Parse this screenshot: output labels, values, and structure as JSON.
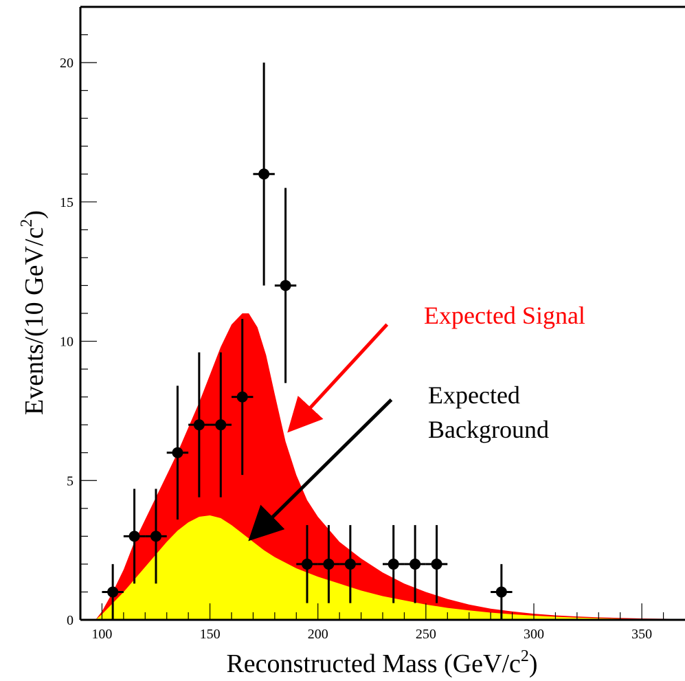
{
  "chart_data": {
    "type": "scatter",
    "title": "",
    "xlabel": {
      "main": "Reconstructed Mass (GeV/c",
      "sup": "2",
      "close": ")"
    },
    "ylabel": {
      "main": "Events/(10 GeV/c",
      "sup": "2",
      "close": ")"
    },
    "xlim": [
      90,
      370
    ],
    "ylim": [
      0,
      22
    ],
    "x_ticks": [
      100,
      150,
      200,
      250,
      300,
      350
    ],
    "y_ticks": [
      0,
      5,
      10,
      15,
      20
    ],
    "x_tick_labels": [
      "100",
      "150",
      "200",
      "250",
      "300",
      "350"
    ],
    "y_tick_labels": [
      "0",
      "5",
      "10",
      "15",
      "20"
    ],
    "data_points": {
      "name": "Data",
      "bin_half_width": 5,
      "x": [
        105,
        115,
        125,
        135,
        145,
        155,
        165,
        175,
        185,
        195,
        205,
        215,
        235,
        245,
        255,
        285
      ],
      "y": [
        1,
        3,
        3,
        6,
        7,
        7,
        8,
        16,
        12,
        2,
        2,
        2,
        2,
        2,
        2,
        1
      ],
      "err_low": [
        1,
        1.7,
        1.7,
        2.4,
        2.6,
        2.6,
        2.8,
        4.0,
        3.5,
        1.4,
        1.4,
        1.4,
        1.4,
        1.4,
        1.4,
        1
      ],
      "err_high": [
        1,
        1.7,
        1.7,
        2.4,
        2.6,
        2.6,
        2.8,
        4.0,
        3.5,
        1.4,
        1.4,
        1.4,
        1.4,
        1.4,
        1.4,
        1
      ]
    },
    "zero_bins": [
      225,
      265,
      275,
      295,
      305,
      315,
      325,
      335,
      345,
      355,
      365
    ],
    "total_expectation": {
      "name": "Expected Signal",
      "color": "#ff0000",
      "x": [
        97,
        100,
        105,
        110,
        115,
        120,
        125,
        130,
        135,
        140,
        145,
        150,
        155,
        160,
        165,
        168,
        172,
        176,
        180,
        185,
        190,
        195,
        200,
        210,
        220,
        230,
        240,
        250,
        260,
        270,
        280,
        290,
        300,
        310,
        320,
        330,
        340,
        350,
        360,
        370
      ],
      "y": [
        0,
        0.3,
        1.0,
        1.8,
        2.8,
        3.6,
        4.4,
        5.2,
        6.0,
        6.9,
        7.8,
        8.8,
        9.8,
        10.6,
        11.0,
        11.0,
        10.5,
        9.5,
        8.1,
        6.4,
        5.2,
        4.3,
        3.7,
        2.8,
        2.2,
        1.7,
        1.3,
        1.0,
        0.75,
        0.55,
        0.4,
        0.3,
        0.22,
        0.16,
        0.12,
        0.09,
        0.07,
        0.05,
        0.04,
        0.03
      ]
    },
    "background": {
      "name": "Expected Background",
      "color": "#ffff00",
      "x": [
        97,
        100,
        105,
        110,
        115,
        120,
        125,
        130,
        135,
        140,
        145,
        150,
        155,
        160,
        165,
        170,
        175,
        180,
        190,
        200,
        210,
        220,
        230,
        240,
        250,
        260,
        270,
        280,
        290,
        300,
        310,
        320,
        330,
        340,
        350,
        360,
        370
      ],
      "y": [
        0,
        0.2,
        0.6,
        1.0,
        1.45,
        1.9,
        2.35,
        2.8,
        3.2,
        3.5,
        3.7,
        3.75,
        3.65,
        3.4,
        3.1,
        2.8,
        2.5,
        2.25,
        1.85,
        1.55,
        1.3,
        1.05,
        0.85,
        0.7,
        0.55,
        0.43,
        0.34,
        0.26,
        0.2,
        0.15,
        0.11,
        0.08,
        0.06,
        0.04,
        0.03,
        0.02,
        0.01
      ]
    },
    "annotations": {
      "signal": {
        "text": "Expected Signal",
        "color": "#ff0000",
        "arrow_from": [
          232,
          10.6
        ],
        "arrow_to": [
          188,
          6.9
        ]
      },
      "background": {
        "lines": [
          "Expected",
          "Background"
        ],
        "color": "#000000",
        "arrow_from": [
          234,
          7.9
        ],
        "arrow_to": [
          170,
          3.0
        ]
      }
    },
    "grid": false,
    "legend": "none"
  }
}
